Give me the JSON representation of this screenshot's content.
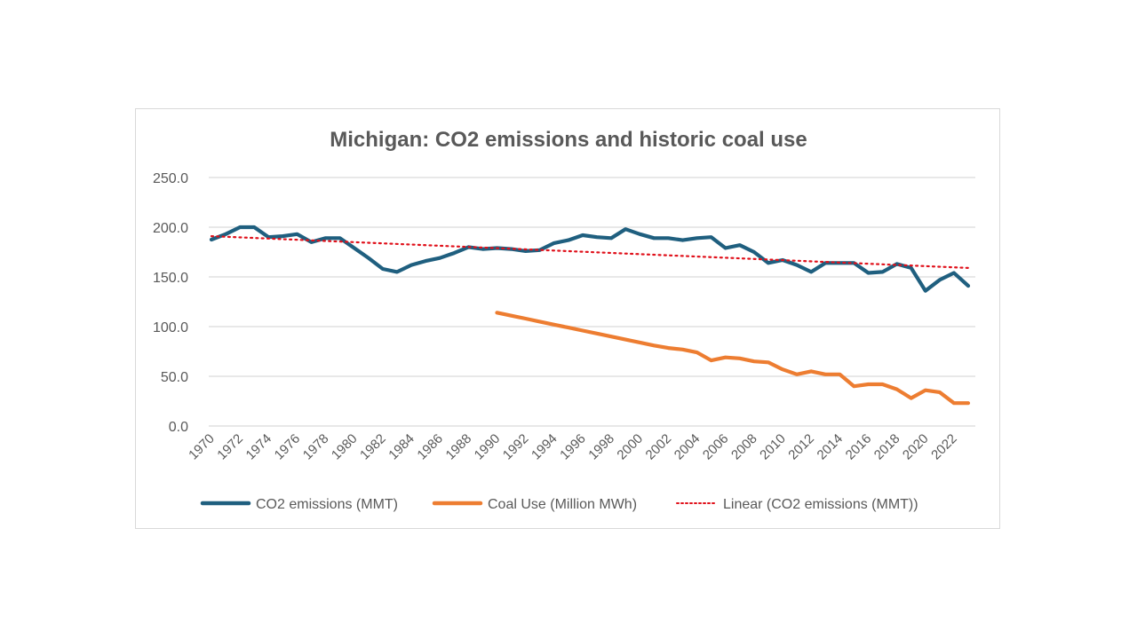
{
  "chart_data": {
    "type": "line",
    "title": "Michigan: CO2 emissions and historic coal use",
    "xlabel": "",
    "ylabel": "",
    "ylim": [
      0,
      250
    ],
    "yticks": [
      "0.0",
      "50.0",
      "100.0",
      "150.0",
      "200.0",
      "250.0"
    ],
    "ytick_values": [
      0,
      50,
      100,
      150,
      200,
      250
    ],
    "xlim": [
      1970,
      2023
    ],
    "xticks": [
      "1970",
      "1972",
      "1974",
      "1976",
      "1978",
      "1980",
      "1982",
      "1984",
      "1986",
      "1988",
      "1990",
      "1992",
      "1994",
      "1996",
      "1998",
      "2000",
      "2002",
      "2004",
      "2006",
      "2008",
      "2010",
      "2012",
      "2014",
      "2016",
      "2018",
      "2020",
      "2022"
    ],
    "grid": "horizontal",
    "legend_position": "bottom",
    "series": [
      {
        "name": "CO2 emissions (MMT)",
        "color": "#1f5f7f",
        "style": "solid",
        "x": [
          1970,
          1971,
          1972,
          1973,
          1974,
          1975,
          1976,
          1977,
          1978,
          1979,
          1980,
          1981,
          1982,
          1983,
          1984,
          1985,
          1986,
          1987,
          1988,
          1989,
          1990,
          1991,
          1992,
          1993,
          1994,
          1995,
          1996,
          1997,
          1998,
          1999,
          2000,
          2001,
          2002,
          2003,
          2004,
          2005,
          2006,
          2007,
          2008,
          2009,
          2010,
          2011,
          2012,
          2013,
          2014,
          2015,
          2016,
          2017,
          2018,
          2019,
          2020,
          2021,
          2022,
          2023
        ],
        "values": [
          187.5,
          193,
          200,
          200,
          190,
          191,
          193,
          185,
          189,
          189,
          179,
          169,
          158,
          155,
          162,
          166,
          169,
          174,
          180,
          178,
          179,
          178,
          176,
          177,
          184,
          187,
          192,
          190,
          189,
          198,
          193,
          189,
          189,
          187,
          189,
          190,
          179,
          182,
          175,
          164,
          167,
          162,
          155,
          164,
          164,
          164,
          154,
          155,
          163,
          159,
          136,
          147,
          154,
          141
        ]
      },
      {
        "name": "Coal Use (Million MWh)",
        "color": "#ed7d31",
        "style": "solid",
        "x": [
          1990,
          1991,
          1992,
          1993,
          1994,
          1995,
          1996,
          1997,
          1998,
          1999,
          2000,
          2001,
          2002,
          2003,
          2004,
          2005,
          2006,
          2007,
          2008,
          2009,
          2010,
          2011,
          2012,
          2013,
          2014,
          2015,
          2016,
          2017,
          2018,
          2019,
          2020,
          2021,
          2022,
          2023
        ],
        "values": [
          114,
          111,
          108,
          105,
          102,
          99,
          96,
          93,
          90,
          87,
          84,
          81,
          78.5,
          77,
          74,
          66,
          69,
          68,
          65,
          64,
          57,
          52,
          55,
          52,
          52,
          40,
          42,
          42,
          37,
          28,
          36,
          34,
          23,
          23
        ]
      },
      {
        "name": "Linear (CO2 emissions (MMT))",
        "color": "#e0111b",
        "style": "dotted",
        "x": [
          1970,
          2023
        ],
        "values": [
          191,
          159
        ]
      }
    ]
  }
}
